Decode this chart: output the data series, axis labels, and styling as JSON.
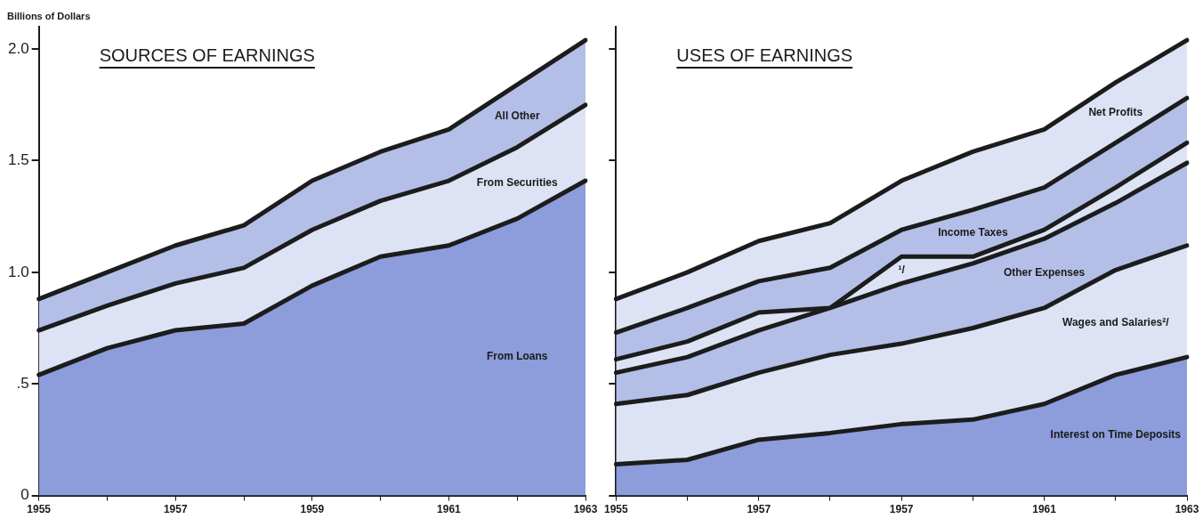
{
  "chart_data": [
    {
      "type": "area",
      "title": "SOURCES OF EARNINGS",
      "ylabel": "Billions of Dollars",
      "stacked": true,
      "categories": [
        "1955",
        null,
        "1957",
        null,
        "1959",
        null,
        "1961",
        null,
        "1963"
      ],
      "series": [
        {
          "name": "From Loans",
          "color": "#8d9cda",
          "values": [
            0.54,
            0.66,
            0.74,
            0.77,
            0.94,
            1.07,
            1.12,
            1.24,
            1.41
          ]
        },
        {
          "name": "From Securities",
          "color": "#dde3f4",
          "values": [
            0.2,
            0.19,
            0.21,
            0.25,
            0.25,
            0.25,
            0.29,
            0.32,
            0.34
          ]
        },
        {
          "name": "All Other",
          "color": "#b3bfe7",
          "values": [
            0.14,
            0.15,
            0.17,
            0.19,
            0.22,
            0.22,
            0.23,
            0.28,
            0.29
          ]
        }
      ],
      "ylim": [
        0,
        2.1
      ],
      "yticks": [
        0,
        {
          "value": 0.5,
          "label": ".5"
        },
        {
          "value": 1,
          "label": "1.0"
        },
        {
          "value": 1.5,
          "label": "1.5"
        },
        {
          "value": 2,
          "label": "2.0"
        }
      ],
      "grid": false,
      "legend": false
    },
    {
      "type": "area",
      "title": "USES OF EARNINGS",
      "stacked": true,
      "categories": [
        "1955",
        null,
        "1957",
        null,
        "1957",
        null,
        "1961",
        null,
        "1963"
      ],
      "series": [
        {
          "name": "Interest on Time Deposits",
          "color": "#8d9cda",
          "values": [
            0.14,
            0.16,
            0.25,
            0.28,
            0.32,
            0.34,
            0.41,
            0.54,
            0.62
          ]
        },
        {
          "name": "Wages and Salaries²/",
          "color": "#dde3f4",
          "values": [
            0.27,
            0.29,
            0.3,
            0.35,
            0.36,
            0.41,
            0.43,
            0.47,
            0.5
          ]
        },
        {
          "name": "Other Expenses",
          "color": "#b3bfe7",
          "values": [
            0.14,
            0.17,
            0.19,
            0.21,
            0.27,
            0.29,
            0.31,
            0.3,
            0.37
          ]
        },
        {
          "name": "¹/",
          "color": "#dde3f4",
          "values": [
            0.06,
            0.07,
            0.08,
            0,
            0.12,
            0.03,
            0.04,
            0.07,
            0.09
          ]
        },
        {
          "name": "Income Taxes",
          "color": "#b3bfe7",
          "values": [
            0.12,
            0.15,
            0.14,
            0.18,
            0.12,
            0.21,
            0.19,
            0.2,
            0.2
          ]
        },
        {
          "name": "Net Profits",
          "color": "#dde3f4",
          "values": [
            0.15,
            0.16,
            0.18,
            0.2,
            0.22,
            0.26,
            0.26,
            0.27,
            0.26
          ]
        }
      ],
      "ylim": [
        0,
        2.1
      ],
      "yticks": [
        0,
        0.5,
        1,
        1.5,
        2
      ],
      "tick_labels": "x",
      "grid": false,
      "legend": false
    }
  ]
}
